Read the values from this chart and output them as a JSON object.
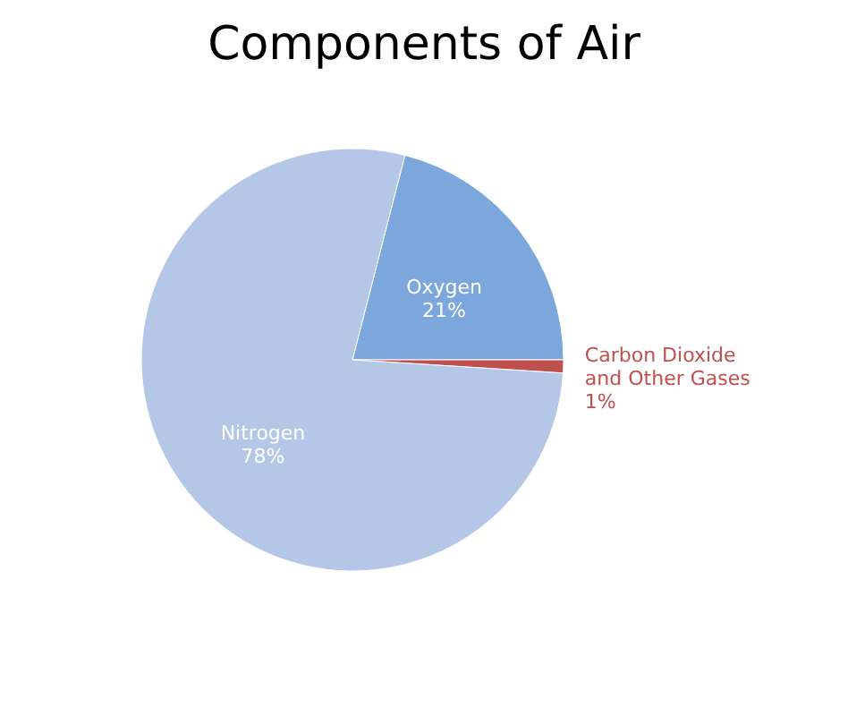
{
  "chart_data": {
    "type": "pie",
    "title": "Components of Air",
    "categories": [
      "Oxygen",
      "Carbon Dioxide and Other Gases",
      "Nitrogen"
    ],
    "values": [
      21,
      1,
      78
    ],
    "value_labels": [
      "21%",
      "1%",
      "78%"
    ],
    "colors": [
      "#7ba7dc",
      "#c0504d",
      "#b4c7e7"
    ],
    "legend": false
  }
}
